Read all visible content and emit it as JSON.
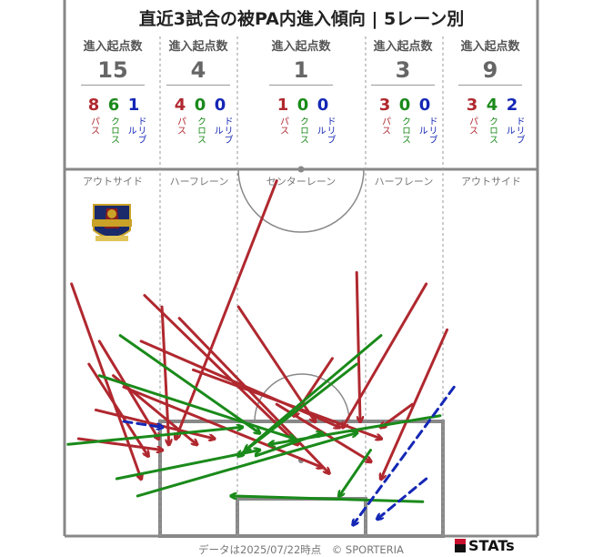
{
  "title": "直近3試合の被PA内進入傾向 | 5レーン別",
  "header_label": "進入起点数",
  "type_labels": {
    "pass": "パス",
    "cross": "クロス",
    "dribble": "ドリブル"
  },
  "colors": {
    "pass": "#b0282f",
    "cross": "#1a8a1a",
    "dribble": "#1427b5",
    "pitch_line": "#888888",
    "lane_divider": "#999999"
  },
  "lanes": [
    {
      "name": "アウトサイド",
      "total": "15",
      "pass": "8",
      "cross": "6",
      "dribble": "1"
    },
    {
      "name": "ハーフレーン",
      "total": "4",
      "pass": "4",
      "cross": "0",
      "dribble": "0"
    },
    {
      "name": "センターレーン",
      "total": "1",
      "pass": "1",
      "cross": "0",
      "dribble": "0"
    },
    {
      "name": "ハーフレーン",
      "total": "3",
      "pass": "3",
      "cross": "0",
      "dribble": "0"
    },
    {
      "name": "アウトサイド",
      "total": "9",
      "pass": "3",
      "cross": "4",
      "dribble": "2"
    }
  ],
  "footer": "データは2025/07/22時点　© SPORTERIA",
  "brand": "STATs",
  "logo_icon": "team-crest-icon",
  "chart_data": {
    "type": "arrow-map",
    "title": "直近3試合の被PA内進入傾向 | 5レーン別",
    "note": "pitch coordinates in meters: x across width (0-68), y distance from goal line (0-32)",
    "xlim": [
      0,
      68
    ],
    "ylim": [
      0,
      32
    ],
    "arrows": [
      {
        "kind": "pass",
        "from": [
          1,
          22
        ],
        "to": [
          11,
          5
        ]
      },
      {
        "kind": "pass",
        "from": [
          5,
          17
        ],
        "to": [
          13.5,
          8.5
        ]
      },
      {
        "kind": "pass",
        "from": [
          3.5,
          15
        ],
        "to": [
          12,
          7
        ]
      },
      {
        "kind": "pass",
        "from": [
          7,
          14
        ],
        "to": [
          19,
          8
        ]
      },
      {
        "kind": "pass",
        "from": [
          2,
          8.5
        ],
        "to": [
          14,
          7.5
        ]
      },
      {
        "kind": "pass",
        "from": [
          4.5,
          11
        ],
        "to": [
          21.5,
          8.5
        ]
      },
      {
        "kind": "pass",
        "from": [
          8.5,
          13
        ],
        "to": [
          37,
          6
        ]
      },
      {
        "kind": "pass",
        "from": [
          14,
          20
        ],
        "to": [
          15,
          8
        ]
      },
      {
        "kind": "pass",
        "from": [
          25,
          20
        ],
        "to": [
          36,
          10
        ]
      },
      {
        "kind": "pass",
        "from": [
          11.5,
          21
        ],
        "to": [
          33.5,
          8
        ]
      },
      {
        "kind": "pass",
        "from": [
          16.5,
          19
        ],
        "to": [
          38,
          5.5
        ]
      },
      {
        "kind": "pass",
        "from": [
          11,
          17
        ],
        "to": [
          39.5,
          9.5
        ]
      },
      {
        "kind": "pass",
        "from": [
          30.5,
          31
        ],
        "to": [
          16,
          8.5
        ]
      },
      {
        "kind": "pass",
        "from": [
          18.5,
          14.5
        ],
        "to": [
          45.5,
          8.5
        ]
      },
      {
        "kind": "pass",
        "from": [
          38.5,
          15.5
        ],
        "to": [
          33,
          10.5
        ]
      },
      {
        "kind": "pass",
        "from": [
          30.5,
          11.5
        ],
        "to": [
          44,
          6.5
        ]
      },
      {
        "kind": "pass",
        "from": [
          42,
          23
        ],
        "to": [
          42.5,
          10
        ]
      },
      {
        "kind": "pass",
        "from": [
          52,
          22
        ],
        "to": [
          40,
          9.5
        ]
      },
      {
        "kind": "pass",
        "from": [
          55,
          18
        ],
        "to": [
          45.5,
          5
        ]
      },
      {
        "kind": "pass",
        "from": [
          50,
          11.5
        ],
        "to": [
          45.5,
          9.5
        ]
      },
      {
        "kind": "cross",
        "from": [
          0.5,
          8
        ],
        "to": [
          25.5,
          9.5
        ]
      },
      {
        "kind": "cross",
        "from": [
          8,
          17.5
        ],
        "to": [
          28,
          9
        ]
      },
      {
        "kind": "cross",
        "from": [
          5,
          14
        ],
        "to": [
          33,
          8.5
        ]
      },
      {
        "kind": "cross",
        "from": [
          7.5,
          5
        ],
        "to": [
          28,
          7.5
        ]
      },
      {
        "kind": "cross",
        "from": [
          10.5,
          3.5
        ],
        "to": [
          42,
          9
        ]
      },
      {
        "kind": "cross",
        "from": [
          27.5,
          7
        ],
        "to": [
          37,
          9
        ]
      },
      {
        "kind": "cross",
        "from": [
          45.5,
          17.5
        ],
        "to": [
          26,
          7.5
        ]
      },
      {
        "kind": "cross",
        "from": [
          42,
          15
        ],
        "to": [
          25,
          7
        ]
      },
      {
        "kind": "cross",
        "from": [
          54,
          10.5
        ],
        "to": [
          29.5,
          8
        ]
      },
      {
        "kind": "cross",
        "from": [
          51.5,
          3
        ],
        "to": [
          24,
          3.5
        ]
      },
      {
        "kind": "cross",
        "from": [
          44,
          7.5
        ],
        "to": [
          39.5,
          3.5
        ]
      },
      {
        "kind": "dribble",
        "from": [
          8.5,
          10
        ],
        "to": [
          14,
          9.5
        ]
      },
      {
        "kind": "dribble",
        "from": [
          56,
          13
        ],
        "to": [
          41.5,
          1
        ]
      },
      {
        "kind": "dribble",
        "from": [
          52,
          5
        ],
        "to": [
          45,
          1.5
        ]
      }
    ]
  }
}
